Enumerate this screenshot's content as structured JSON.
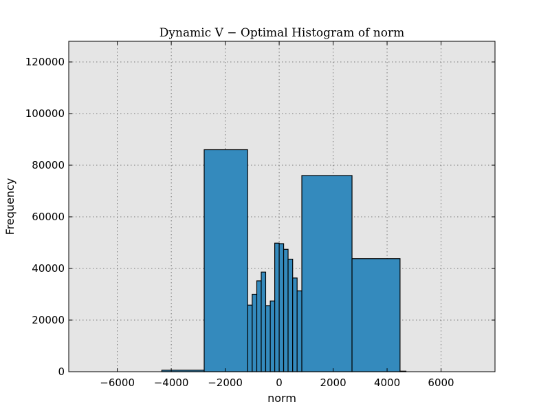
{
  "chart_data": {
    "type": "bar",
    "title": "Dynamic V − Optimal Histogram of norm",
    "xlabel": "norm",
    "ylabel": "Frequency",
    "xlim": [
      -7800,
      8000
    ],
    "ylim": [
      0,
      128000
    ],
    "xticks": [
      -6000,
      -4000,
      -2000,
      0,
      2000,
      4000,
      6000
    ],
    "yticks": [
      0,
      20000,
      40000,
      60000,
      80000,
      100000,
      120000
    ],
    "xtick_labels": [
      "−6000",
      "−4000",
      "−2000",
      "0",
      "2000",
      "4000",
      "6000"
    ],
    "ytick_labels": [
      "0",
      "20000",
      "40000",
      "60000",
      "80000",
      "100000",
      "120000"
    ],
    "grid": true,
    "bar_color": "#348abd",
    "background_color": "#e5e5e5",
    "bins": [
      {
        "x0": -4350,
        "x1": -2780,
        "value": 600
      },
      {
        "x0": -2780,
        "x1": -1170,
        "value": 86000
      },
      {
        "x0": -1170,
        "x1": -1000,
        "value": 25800
      },
      {
        "x0": -1000,
        "x1": -830,
        "value": 30000
      },
      {
        "x0": -830,
        "x1": -665,
        "value": 35200
      },
      {
        "x0": -665,
        "x1": -500,
        "value": 38600
      },
      {
        "x0": -500,
        "x1": -330,
        "value": 25600
      },
      {
        "x0": -330,
        "x1": -165,
        "value": 27400
      },
      {
        "x0": -165,
        "x1": 0,
        "value": 49800
      },
      {
        "x0": 0,
        "x1": 165,
        "value": 49600
      },
      {
        "x0": 165,
        "x1": 330,
        "value": 47400
      },
      {
        "x0": 330,
        "x1": 500,
        "value": 43600
      },
      {
        "x0": 500,
        "x1": 665,
        "value": 36300
      },
      {
        "x0": 665,
        "x1": 840,
        "value": 31300
      },
      {
        "x0": 840,
        "x1": 2700,
        "value": 76000
      },
      {
        "x0": 2700,
        "x1": 4480,
        "value": 43800
      },
      {
        "x0": 4480,
        "x1": 4700,
        "value": 200
      }
    ]
  }
}
